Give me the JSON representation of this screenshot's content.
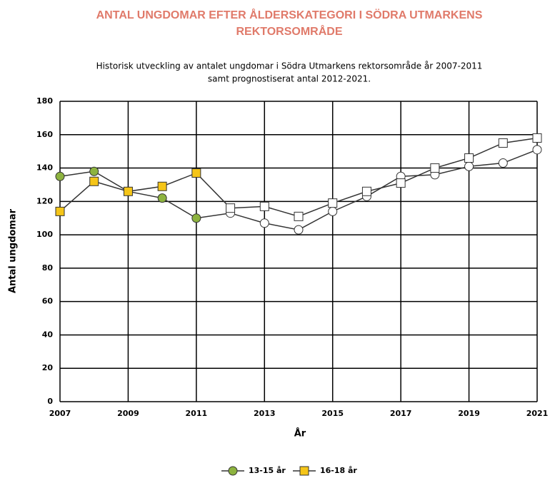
{
  "chart_data": {
    "type": "line",
    "title": [
      "ANTAL UNGDOMAR EFTER ÅLDERSKATEGORI I SÖDRA UTMARKENS",
      "REKTORSOMRÅDE"
    ],
    "subtitle": [
      "Historisk utveckling av antalet ungdomar i  Södra Utmarkens rektorsområde år 2007-2011",
      "samt prognostiserat antal 2012-2021."
    ],
    "x_label": "År",
    "y_label": "Antal ungdomar",
    "x": [
      2007,
      2008,
      2009,
      2010,
      2011,
      2012,
      2013,
      2014,
      2015,
      2016,
      2017,
      2018,
      2019,
      2020,
      2021
    ],
    "series": [
      {
        "name": "13-15 år",
        "color": "#333333",
        "marker": "circle",
        "marker_colors": [
          "#8db33f",
          "#8db33f",
          "#8db33f",
          "#8db33f",
          "#8db33f",
          "#ffffff",
          "#ffffff",
          "#ffffff",
          "#ffffff",
          "#ffffff",
          "#ffffff",
          "#ffffff",
          "#ffffff",
          "#ffffff",
          "#ffffff"
        ],
        "values": [
          135,
          138,
          126,
          122,
          110,
          113,
          107,
          103,
          114,
          123,
          135,
          136,
          141,
          143,
          151
        ]
      },
      {
        "name": "16-18 år",
        "color": "#333333",
        "marker": "square",
        "marker_colors": [
          "#f5c518",
          "#f5c518",
          "#f5c518",
          "#f5c518",
          "#f5c518",
          "#ffffff",
          "#ffffff",
          "#ffffff",
          "#ffffff",
          "#ffffff",
          "#ffffff",
          "#ffffff",
          "#ffffff",
          "#ffffff",
          "#ffffff"
        ],
        "values": [
          114,
          132,
          126,
          129,
          137,
          116,
          117,
          111,
          119,
          126,
          131,
          140,
          146,
          155,
          158
        ]
      }
    ],
    "xlim": [
      2007,
      2021
    ],
    "xticks": [
      2007,
      2009,
      2011,
      2013,
      2015,
      2017,
      2019,
      2021
    ],
    "ylim": [
      0,
      180
    ],
    "yticks": [
      0,
      20,
      40,
      60,
      80,
      100,
      120,
      140,
      160,
      180
    ],
    "grid": true,
    "legend": "bottom"
  }
}
